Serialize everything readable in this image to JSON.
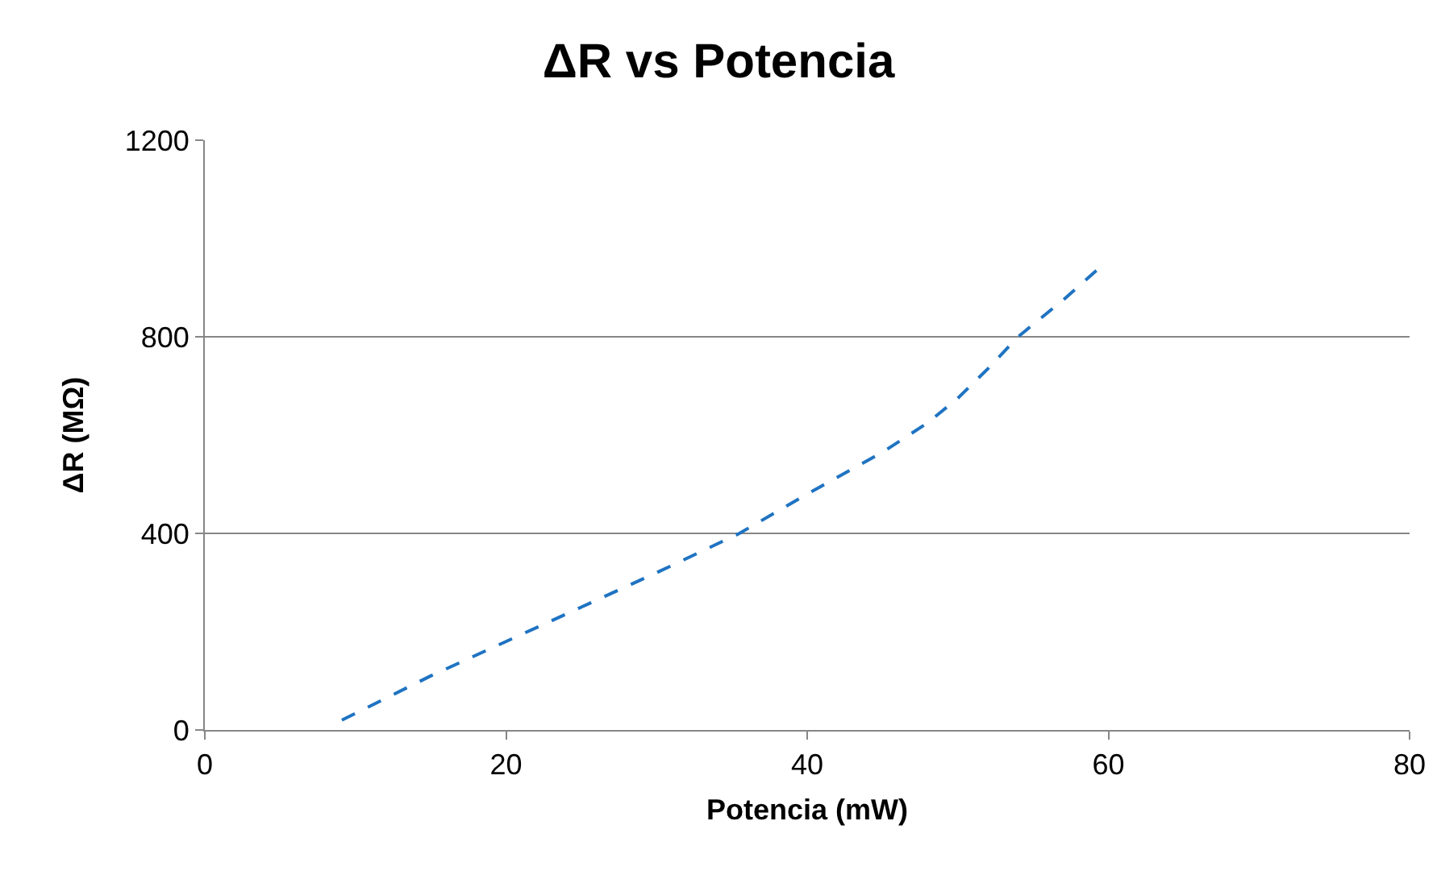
{
  "chart_data": {
    "type": "line",
    "title": "ΔR vs Potencia",
    "xlabel": "Potencia (mW)",
    "ylabel": "ΔR (MΩ)",
    "x": [
      9.1,
      15,
      20,
      25,
      30,
      35.5,
      40,
      45,
      48,
      50,
      52,
      54,
      57,
      59.4
    ],
    "series": [
      {
        "color": "#1f73c2",
        "values": [
          20,
          110,
          180,
          250,
          320,
          400,
          480,
          565,
          625,
          675,
          735,
          800,
          875,
          940
        ]
      }
    ],
    "xlim": [
      0,
      80
    ],
    "xticks": [
      0,
      20,
      40,
      60,
      80
    ],
    "ylim": [
      0,
      1200
    ],
    "yticks": [
      0,
      400,
      800,
      1200
    ],
    "grid": "y",
    "marker": "none",
    "line_style": "dashed"
  }
}
